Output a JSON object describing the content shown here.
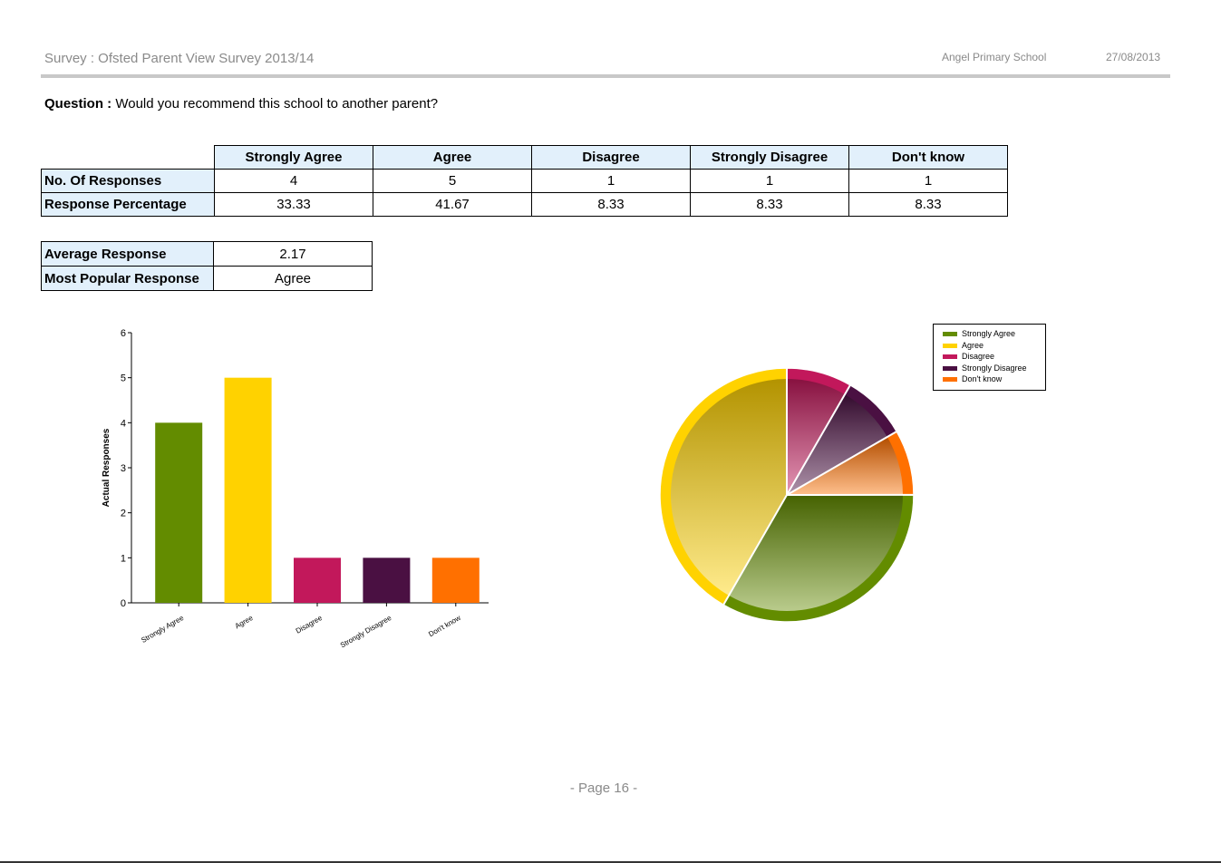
{
  "header": {
    "survey_title": "Survey : Ofsted Parent View Survey 2013/14",
    "school": "Angel Primary School",
    "date": "27/08/2013"
  },
  "question": {
    "label": "Question :",
    "text": "Would you recommend this school to another parent?"
  },
  "response_table": {
    "columns": [
      "Strongly Agree",
      "Agree",
      "Disagree",
      "Strongly Disagree",
      "Don't know"
    ],
    "rows": [
      {
        "label": "No. Of Responses",
        "values": [
          "4",
          "5",
          "1",
          "1",
          "1"
        ]
      },
      {
        "label": "Response Percentage",
        "values": [
          "33.33",
          "41.67",
          "8.33",
          "8.33",
          "8.33"
        ]
      }
    ]
  },
  "summary": {
    "average_label": "Average Response",
    "average_value": "2.17",
    "popular_label": "Most Popular Response",
    "popular_value": "Agree"
  },
  "footer": {
    "page": "- Page 16 -"
  },
  "chart_data": [
    {
      "type": "bar",
      "categories": [
        "Strongly Agree",
        "Agree",
        "Disagree",
        "Strongly Disagree",
        "Don't know"
      ],
      "values": [
        4,
        5,
        1,
        1,
        1
      ],
      "colors": [
        "#638c00",
        "#ffd200",
        "#c2185b",
        "#4a1042",
        "#ff7000"
      ],
      "xlabel": "",
      "ylabel": "Actual Responses",
      "ylim": [
        0,
        6
      ],
      "yticks": [
        0,
        1,
        2,
        3,
        4,
        5,
        6
      ],
      "grid": false
    },
    {
      "type": "pie",
      "categories": [
        "Strongly Agree",
        "Agree",
        "Disagree",
        "Strongly Disagree",
        "Don't know"
      ],
      "values": [
        33.33,
        41.67,
        8.33,
        8.33,
        8.33
      ],
      "colors": [
        "#638c00",
        "#ffd200",
        "#c2185b",
        "#4a1042",
        "#ff7000"
      ],
      "legend": [
        "Strongly Agree",
        "Agree",
        "Disagree",
        "Strongly Disagree",
        "Don't know"
      ],
      "legend_position": "top-right"
    }
  ]
}
